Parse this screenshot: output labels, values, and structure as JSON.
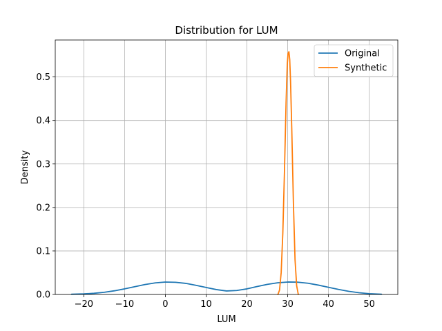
{
  "chart_data": {
    "type": "line",
    "title": "Distribution for LUM",
    "xlabel": "LUM",
    "ylabel": "Density",
    "xlim": [
      -27,
      57
    ],
    "ylim": [
      0,
      0.585
    ],
    "xticks": [
      -20,
      -10,
      0,
      10,
      20,
      30,
      40,
      50
    ],
    "yticks": [
      0.0,
      0.1,
      0.2,
      0.3,
      0.4,
      0.5
    ],
    "xtick_labels": [
      "−20",
      "−10",
      "0",
      "10",
      "20",
      "30",
      "40",
      "50"
    ],
    "ytick_labels": [
      "0.0",
      "0.1",
      "0.2",
      "0.3",
      "0.4",
      "0.5"
    ],
    "grid": true,
    "legend_position": "upper right",
    "series": [
      {
        "name": "Original",
        "color": "#1f77b4",
        "x": [
          -23,
          -20,
          -17.5,
          -15,
          -12.5,
          -10,
          -7.5,
          -5,
          -2.5,
          0,
          2.5,
          5,
          7.5,
          10,
          12.5,
          15,
          17.5,
          20,
          22.5,
          25,
          27.5,
          30,
          32.5,
          35,
          37.5,
          40,
          42.5,
          45,
          47.5,
          50,
          53
        ],
        "y": [
          0.0005,
          0.0013,
          0.0027,
          0.005,
          0.0084,
          0.0128,
          0.0178,
          0.0228,
          0.0266,
          0.0285,
          0.028,
          0.0255,
          0.021,
          0.016,
          0.0112,
          0.008,
          0.0091,
          0.0128,
          0.0182,
          0.0232,
          0.0268,
          0.0286,
          0.0282,
          0.0257,
          0.0215,
          0.0165,
          0.0115,
          0.0072,
          0.004,
          0.0018,
          0.0005
        ]
      },
      {
        "name": "Synthetic",
        "color": "#ff7f0e",
        "x": [
          27.6,
          28.0,
          28.4,
          28.8,
          29.2,
          29.6,
          29.9,
          30.1,
          30.3,
          30.5,
          30.7,
          31.0,
          31.4,
          31.8,
          32.2,
          32.6
        ],
        "y": [
          0.0,
          0.01,
          0.05,
          0.14,
          0.28,
          0.44,
          0.53,
          0.555,
          0.558,
          0.54,
          0.49,
          0.38,
          0.21,
          0.08,
          0.02,
          0.0
        ]
      }
    ]
  }
}
